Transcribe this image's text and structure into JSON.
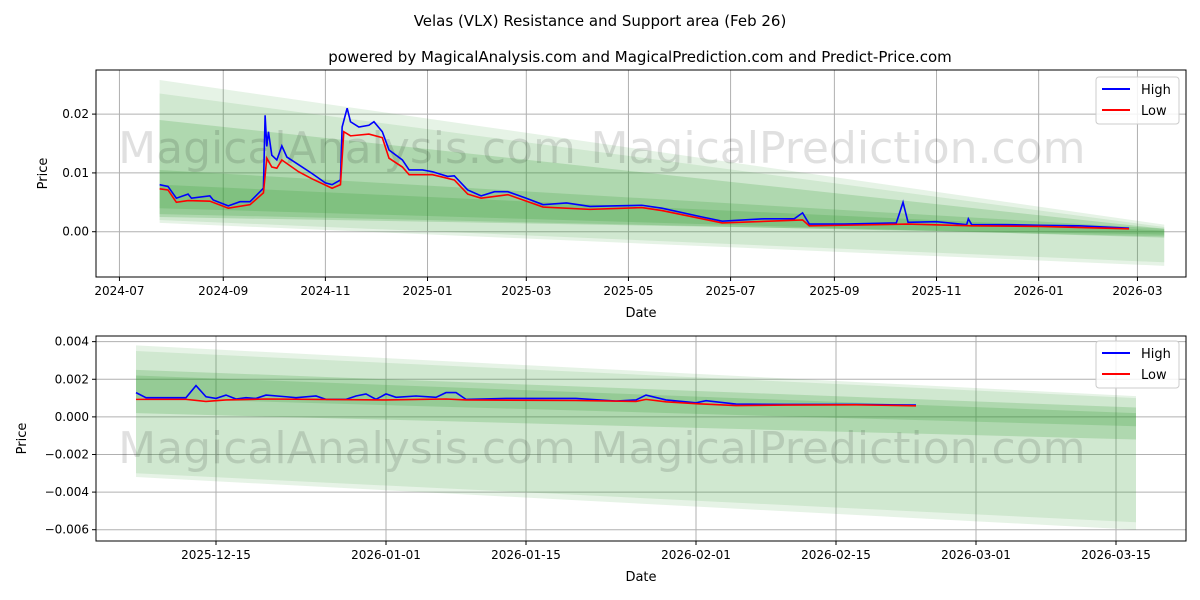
{
  "title": "Velas (VLX) Resistance and Support area (Feb 26)",
  "subtitle": "powered by MagicalAnalysis.com and MagicalPrediction.com and Predict-Price.com",
  "watermarks": [
    "MagicalAnalysis.com",
    "MagicalPrediction.com"
  ],
  "colors": {
    "high": "#0000ff",
    "low": "#ff0000",
    "band": "#2e9a2e"
  },
  "chart_data": [
    {
      "type": "line",
      "xlabel": "Date",
      "ylabel": "Price",
      "ylim": [
        -0.0077,
        0.0275
      ],
      "xlim": [
        "2024-06-17",
        "2026-03-30"
      ],
      "yticks": [
        {
          "v": 0,
          "label": "0.00"
        },
        {
          "v": 0.01,
          "label": "0.01"
        },
        {
          "v": 0.02,
          "label": "0.02"
        }
      ],
      "xticks": [
        {
          "d": "2024-07-01",
          "label": "2024-07"
        },
        {
          "d": "2024-09-01",
          "label": "2024-09"
        },
        {
          "d": "2024-11-01",
          "label": "2024-11"
        },
        {
          "d": "2025-01-01",
          "label": "2025-01"
        },
        {
          "d": "2025-03-01",
          "label": "2025-03"
        },
        {
          "d": "2025-05-01",
          "label": "2025-05"
        },
        {
          "d": "2025-07-01",
          "label": "2025-07"
        },
        {
          "d": "2025-09-01",
          "label": "2025-09"
        },
        {
          "d": "2025-11-01",
          "label": "2025-11"
        },
        {
          "d": "2026-01-01",
          "label": "2026-01"
        },
        {
          "d": "2026-03-01",
          "label": "2026-03"
        }
      ],
      "legend": {
        "position": "top-right",
        "entries": [
          "High",
          "Low"
        ]
      },
      "bands": {
        "start": "2024-07-25",
        "end": "2026-03-17",
        "items": [
          {
            "upper": [
              0.0258,
              0.0012
            ],
            "lower": [
              0.0015,
              -0.0058
            ],
            "alpha": 0.12
          },
          {
            "upper": [
              0.0235,
              0.0008
            ],
            "lower": [
              0.002,
              -0.0052
            ],
            "alpha": 0.12
          },
          {
            "upper": [
              0.019,
              0.0005
            ],
            "lower": [
              0.004,
              -0.001
            ],
            "alpha": 0.2
          },
          {
            "upper": [
              0.0105,
              0.0005
            ],
            "lower": [
              0.003,
              -0.0008
            ],
            "alpha": 0.2
          },
          {
            "upper": [
              0.008,
              0.0002
            ],
            "lower": [
              0.0025,
              -0.0005
            ],
            "alpha": 0.2
          }
        ]
      },
      "series": [
        {
          "name": "High",
          "points": [
            [
              "2024-07-25",
              0.008
            ],
            [
              "2024-07-30",
              0.0077
            ],
            [
              "2024-08-04",
              0.0057
            ],
            [
              "2024-08-11",
              0.0064
            ],
            [
              "2024-08-13",
              0.0057
            ],
            [
              "2024-08-24",
              0.0061
            ],
            [
              "2024-08-26",
              0.0054
            ],
            [
              "2024-09-04",
              0.0044
            ],
            [
              "2024-09-11",
              0.0051
            ],
            [
              "2024-09-17",
              0.0051
            ],
            [
              "2024-09-25",
              0.0074
            ],
            [
              "2024-09-26",
              0.0198
            ],
            [
              "2024-09-27",
              0.0145
            ],
            [
              "2024-09-28",
              0.017
            ],
            [
              "2024-09-30",
              0.013
            ],
            [
              "2024-10-03",
              0.0122
            ],
            [
              "2024-10-06",
              0.0146
            ],
            [
              "2024-10-09",
              0.0127
            ],
            [
              "2024-10-16",
              0.0114
            ],
            [
              "2024-10-24",
              0.0099
            ],
            [
              "2024-11-01",
              0.0083
            ],
            [
              "2024-11-05",
              0.008
            ],
            [
              "2024-11-10",
              0.0088
            ],
            [
              "2024-11-11",
              0.0178
            ],
            [
              "2024-11-14",
              0.021
            ],
            [
              "2024-11-16",
              0.0187
            ],
            [
              "2024-11-21",
              0.0178
            ],
            [
              "2024-11-27",
              0.0181
            ],
            [
              "2024-11-30",
              0.0187
            ],
            [
              "2024-12-05",
              0.017
            ],
            [
              "2024-12-09",
              0.0139
            ],
            [
              "2024-12-17",
              0.0122
            ],
            [
              "2024-12-21",
              0.0105
            ],
            [
              "2024-12-29",
              0.0105
            ],
            [
              "2025-01-04",
              0.0102
            ],
            [
              "2025-01-13",
              0.0094
            ],
            [
              "2025-01-17",
              0.0095
            ],
            [
              "2025-01-25",
              0.0071
            ],
            [
              "2025-02-02",
              0.0061
            ],
            [
              "2025-02-10",
              0.0068
            ],
            [
              "2025-02-18",
              0.0068
            ],
            [
              "2025-03-01",
              0.0057
            ],
            [
              "2025-03-11",
              0.0046
            ],
            [
              "2025-03-25",
              0.0049
            ],
            [
              "2025-04-08",
              0.0043
            ],
            [
              "2025-04-24",
              0.0044
            ],
            [
              "2025-05-09",
              0.0045
            ],
            [
              "2025-05-21",
              0.004
            ],
            [
              "2025-06-14",
              0.0025
            ],
            [
              "2025-06-26",
              0.0018
            ],
            [
              "2025-07-21",
              0.0022
            ],
            [
              "2025-08-08",
              0.0022
            ],
            [
              "2025-08-13",
              0.0032
            ],
            [
              "2025-08-17",
              0.0013
            ],
            [
              "2025-09-07",
              0.0013
            ],
            [
              "2025-10-08",
              0.0015
            ],
            [
              "2025-10-12",
              0.005
            ],
            [
              "2025-10-15",
              0.0016
            ],
            [
              "2025-11-01",
              0.0017
            ],
            [
              "2025-11-19",
              0.0012
            ],
            [
              "2025-11-20",
              0.0022
            ],
            [
              "2025-11-22",
              0.0012
            ],
            [
              "2025-12-13",
              0.0012
            ],
            [
              "2026-01-02",
              0.0011
            ],
            [
              "2026-01-25",
              0.001
            ],
            [
              "2026-02-24",
              0.0006
            ]
          ]
        },
        {
          "name": "Low",
          "points": [
            [
              "2024-07-25",
              0.0073
            ],
            [
              "2024-07-30",
              0.0071
            ],
            [
              "2024-08-04",
              0.005
            ],
            [
              "2024-08-11",
              0.0053
            ],
            [
              "2024-08-24",
              0.0052
            ],
            [
              "2024-09-04",
              0.004
            ],
            [
              "2024-09-17",
              0.0046
            ],
            [
              "2024-09-25",
              0.0066
            ],
            [
              "2024-09-27",
              0.0125
            ],
            [
              "2024-09-30",
              0.011
            ],
            [
              "2024-10-03",
              0.0108
            ],
            [
              "2024-10-06",
              0.0122
            ],
            [
              "2024-10-16",
              0.0102
            ],
            [
              "2024-10-24",
              0.009
            ],
            [
              "2024-11-05",
              0.0074
            ],
            [
              "2024-11-10",
              0.008
            ],
            [
              "2024-11-12",
              0.017
            ],
            [
              "2024-11-16",
              0.0163
            ],
            [
              "2024-11-27",
              0.0166
            ],
            [
              "2024-12-05",
              0.016
            ],
            [
              "2024-12-09",
              0.0125
            ],
            [
              "2024-12-17",
              0.011
            ],
            [
              "2024-12-21",
              0.0097
            ],
            [
              "2025-01-04",
              0.0097
            ],
            [
              "2025-01-17",
              0.0088
            ],
            [
              "2025-01-25",
              0.0064
            ],
            [
              "2025-02-02",
              0.0057
            ],
            [
              "2025-02-18",
              0.0063
            ],
            [
              "2025-03-01",
              0.0052
            ],
            [
              "2025-03-11",
              0.0042
            ],
            [
              "2025-04-08",
              0.0038
            ],
            [
              "2025-05-09",
              0.0041
            ],
            [
              "2025-05-21",
              0.0036
            ],
            [
              "2025-06-14",
              0.0022
            ],
            [
              "2025-06-26",
              0.0015
            ],
            [
              "2025-08-13",
              0.002
            ],
            [
              "2025-08-17",
              0.001
            ],
            [
              "2025-09-07",
              0.0011
            ],
            [
              "2025-10-15",
              0.0013
            ],
            [
              "2025-11-22",
              0.001
            ],
            [
              "2026-01-02",
              0.0009
            ],
            [
              "2026-02-24",
              0.0005
            ]
          ]
        }
      ]
    },
    {
      "type": "line",
      "xlabel": "Date",
      "ylabel": "Price",
      "ylim": [
        -0.0066,
        0.0043
      ],
      "xlim": [
        "2025-12-03",
        "2026-03-22"
      ],
      "yticks": [
        {
          "v": -0.006,
          "label": "−0.006"
        },
        {
          "v": -0.004,
          "label": "−0.004"
        },
        {
          "v": -0.002,
          "label": "−0.002"
        },
        {
          "v": 0,
          "label": "0.000"
        },
        {
          "v": 0.002,
          "label": "0.002"
        },
        {
          "v": 0.004,
          "label": "0.004"
        }
      ],
      "xticks": [
        {
          "d": "2025-12-15",
          "label": "2025-12-15"
        },
        {
          "d": "2026-01-01",
          "label": "2026-01-01"
        },
        {
          "d": "2026-01-15",
          "label": "2026-01-15"
        },
        {
          "d": "2026-02-01",
          "label": "2026-02-01"
        },
        {
          "d": "2026-02-15",
          "label": "2026-02-15"
        },
        {
          "d": "2026-03-01",
          "label": "2026-03-01"
        },
        {
          "d": "2026-03-15",
          "label": "2026-03-15"
        }
      ],
      "legend": {
        "position": "top-right",
        "entries": [
          "High",
          "Low"
        ]
      },
      "bands": {
        "start": "2025-12-07",
        "end": "2026-03-17",
        "items": [
          {
            "upper": [
              0.0038,
              0.0011
            ],
            "lower": [
              -0.0032,
              -0.006
            ],
            "alpha": 0.12
          },
          {
            "upper": [
              0.0035,
              0.001
            ],
            "lower": [
              -0.003,
              -0.0056
            ],
            "alpha": 0.12
          },
          {
            "upper": [
              0.0025,
              0.0005
            ],
            "lower": [
              0.0002,
              -0.0012
            ],
            "alpha": 0.2
          },
          {
            "upper": [
              0.0022,
              0.0002
            ],
            "lower": [
              0.001,
              -0.0005
            ],
            "alpha": 0.2
          }
        ]
      },
      "series": [
        {
          "name": "High",
          "points": [
            [
              "2025-12-07",
              0.00129
            ],
            [
              "2025-12-08",
              0.00102
            ],
            [
              "2025-12-12",
              0.00102
            ],
            [
              "2025-12-13",
              0.00166
            ],
            [
              "2025-12-14",
              0.00107
            ],
            [
              "2025-12-15",
              0.00098
            ],
            [
              "2025-12-16",
              0.00116
            ],
            [
              "2025-12-17",
              0.00095
            ],
            [
              "2025-12-18",
              0.00102
            ],
            [
              "2025-12-19",
              0.00098
            ],
            [
              "2025-12-20",
              0.00116
            ],
            [
              "2025-12-22",
              0.00107
            ],
            [
              "2025-12-23",
              0.00102
            ],
            [
              "2025-12-25",
              0.00111
            ],
            [
              "2025-12-26",
              0.00093
            ],
            [
              "2025-12-28",
              0.00093
            ],
            [
              "2025-12-29",
              0.00111
            ],
            [
              "2025-12-30",
              0.00122
            ],
            [
              "2025-12-31",
              0.00093
            ],
            [
              "2026-01-01",
              0.00122
            ],
            [
              "2026-01-02",
              0.00104
            ],
            [
              "2026-01-04",
              0.00111
            ],
            [
              "2026-01-06",
              0.00104
            ],
            [
              "2026-01-07",
              0.00129
            ],
            [
              "2026-01-08",
              0.00129
            ],
            [
              "2026-01-09",
              0.00093
            ],
            [
              "2026-01-13",
              0.00098
            ],
            [
              "2026-01-17",
              0.00098
            ],
            [
              "2026-01-20",
              0.00098
            ],
            [
              "2026-01-24",
              0.00084
            ],
            [
              "2026-01-26",
              0.0009
            ],
            [
              "2026-01-27",
              0.00116
            ],
            [
              "2026-01-29",
              0.0009
            ],
            [
              "2026-02-01",
              0.00075
            ],
            [
              "2026-02-02",
              0.00086
            ],
            [
              "2026-02-05",
              0.00068
            ],
            [
              "2026-02-10",
              0.00066
            ],
            [
              "2026-02-17",
              0.00066
            ],
            [
              "2026-02-23",
              0.00063
            ]
          ]
        },
        {
          "name": "Low",
          "points": [
            [
              "2025-12-07",
              0.00093
            ],
            [
              "2025-12-12",
              0.00093
            ],
            [
              "2025-12-14",
              0.00082
            ],
            [
              "2025-12-16",
              0.0009
            ],
            [
              "2025-12-20",
              0.00095
            ],
            [
              "2026-01-01",
              0.0009
            ],
            [
              "2026-01-07",
              0.00095
            ],
            [
              "2026-01-09",
              0.0009
            ],
            [
              "2026-01-20",
              0.00087
            ],
            [
              "2026-01-26",
              0.00082
            ],
            [
              "2026-01-27",
              0.00093
            ],
            [
              "2026-01-29",
              0.0008
            ],
            [
              "2026-02-01",
              0.0007
            ],
            [
              "2026-02-05",
              0.0006
            ],
            [
              "2026-02-10",
              0.00063
            ],
            [
              "2026-02-17",
              0.00064
            ],
            [
              "2026-02-23",
              0.00059
            ]
          ]
        }
      ]
    }
  ]
}
